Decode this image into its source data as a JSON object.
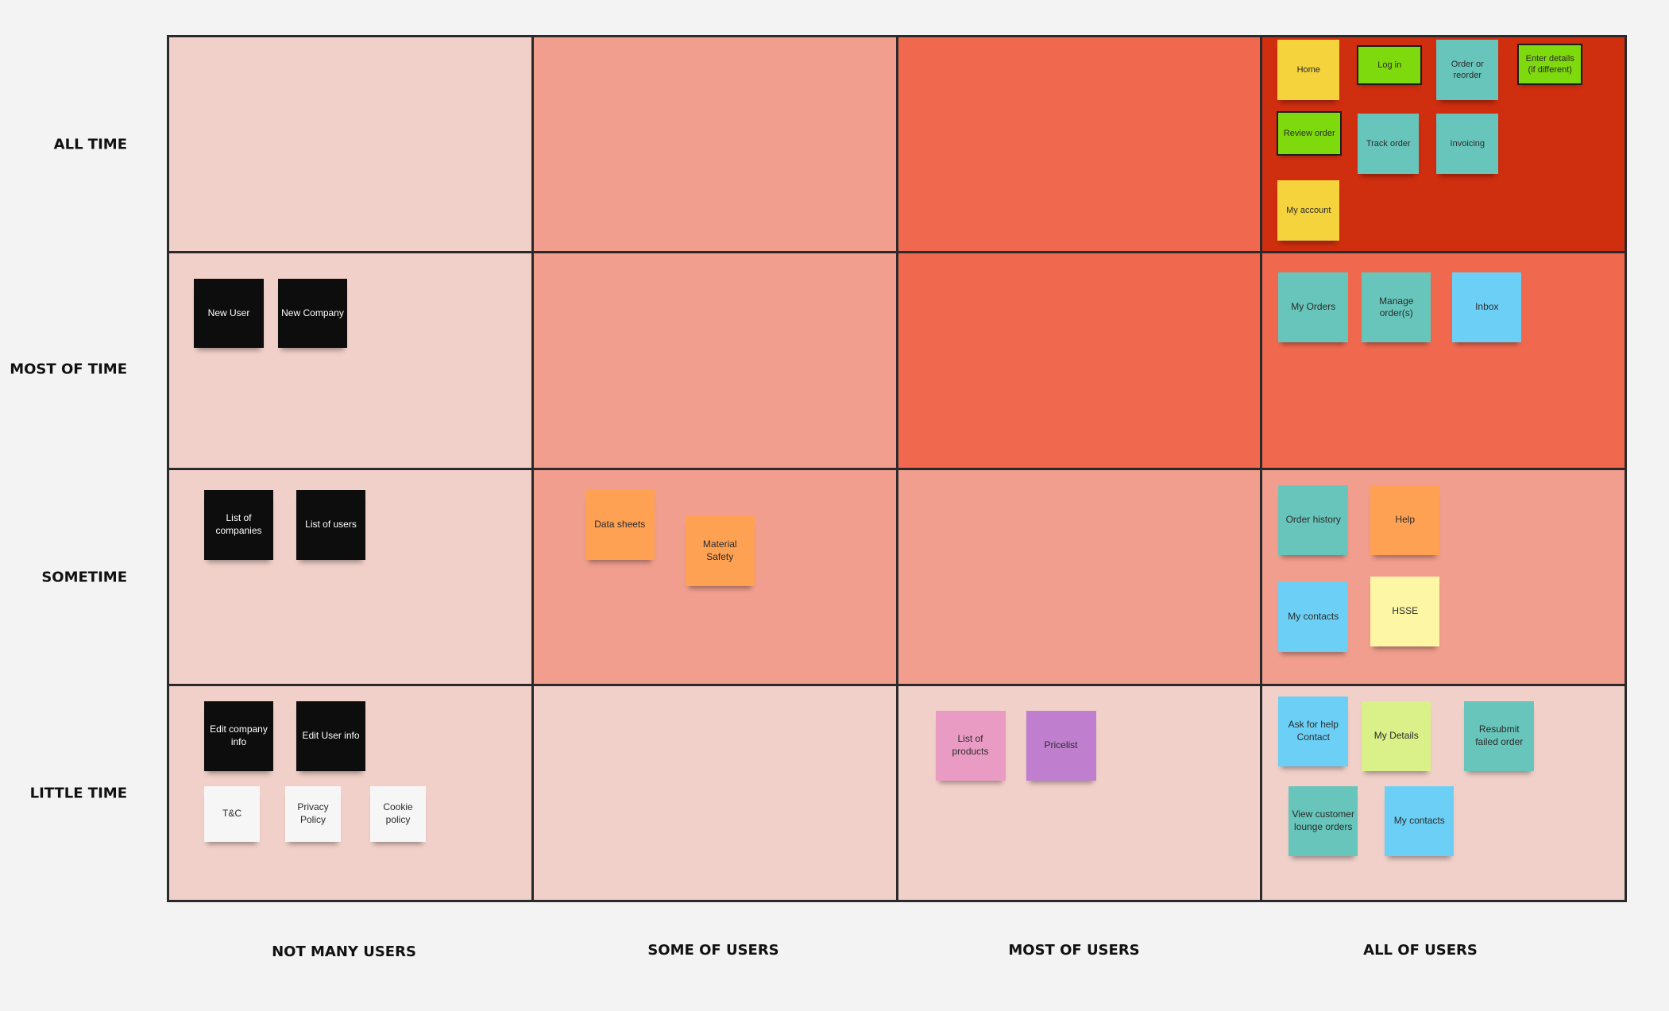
{
  "row_labels": [
    "ALL TIME",
    "MOST OF TIME",
    "SOMETIME",
    "LITTLE TIME"
  ],
  "column_labels": [
    "NOT MANY USERS",
    "SOME OF USERS",
    "MOST OF USERS",
    "ALL OF USERS"
  ],
  "cell_colors": [
    [
      "#f1d0c9",
      "#f19e8e",
      "#f0694f",
      "#cf2e0f"
    ],
    [
      "#f1d0c9",
      "#f19e8e",
      "#f0694f",
      "#f0694f"
    ],
    [
      "#f1d0c9",
      "#f19e8e",
      "#f19e8e",
      "#f19e8e"
    ],
    [
      "#f1d0c9",
      "#f1d0c9",
      "#f1d0c9",
      "#f1d0c9"
    ]
  ],
  "note_colors": {
    "yellow": "#f5d33c",
    "green": "#7ed90d",
    "teal": "#68c5bb",
    "black": "#0d0d0d",
    "orange": "#ffa152",
    "light_blue": "#6cd0f6",
    "light_yellow": "#fdf6a4",
    "pink": "#ea9bc3",
    "purple": "#c07fce",
    "lime": "#daf088",
    "white": "#f6f6f6"
  },
  "notes": {
    "home": "Home",
    "log_in": "Log in",
    "order_or_reorder": "Order or reorder",
    "enter_details": "Enter details (if different)",
    "review_order": "Review order",
    "track_order": "Track order",
    "invoicing": "Invoicing",
    "my_account": "My account",
    "new_user": "New User",
    "new_company": "New Company",
    "my_orders": "My Orders",
    "manage_orders": "Manage order(s)",
    "inbox": "Inbox",
    "list_of_companies": "List of companies",
    "list_of_users": "List of users",
    "data_sheets": "Data sheets",
    "material_safety": "Material Safety",
    "order_history": "Order history",
    "help": "Help",
    "my_contacts_sometime": "My contacts",
    "hsse": "HSSE",
    "edit_company_info": "Edit company info",
    "edit_user_info": "Edit  User info",
    "tc": "T&C",
    "privacy_policy": "Privacy Policy",
    "cookie_policy": "Cookie policy",
    "list_of_products": "List of products",
    "pricelist": "Pricelist",
    "ask_for_help": "Ask for help Contact",
    "my_details": "My Details",
    "resubmit_failed_order": "Resubmit failed order",
    "view_customer_lounge_orders": "View customer lounge orders",
    "my_contacts_little": "My contacts"
  }
}
